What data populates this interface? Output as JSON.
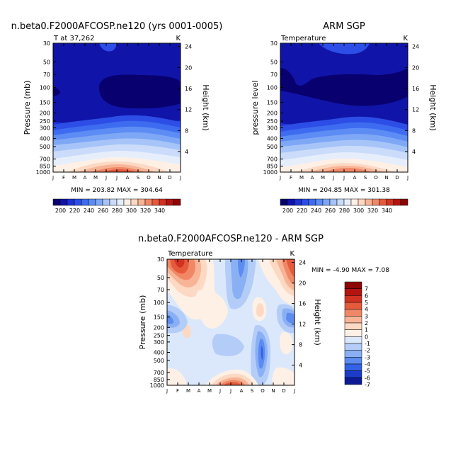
{
  "chart_data": [
    {
      "type": "heatmap",
      "title": "n.beta0.F2000AFCOSP.ne120 (yrs 0001-0005)",
      "subtitle_left": "T at 37,262",
      "subtitle_right": "K",
      "ylabel": "Pressure (mb)",
      "y2label": "Height (km)",
      "x_ticks": [
        "J",
        "F",
        "M",
        "A",
        "M",
        "J",
        "J",
        "A",
        "S",
        "O",
        "N",
        "D",
        "J"
      ],
      "y_ticks": [
        "30",
        "50",
        "70",
        "100",
        "150",
        "200",
        "250",
        "300",
        "400",
        "500",
        "700",
        "850",
        "1000"
      ],
      "y2_ticks": [
        "24",
        "20",
        "16",
        "12",
        "8",
        "4"
      ],
      "stats": "MIN = 203.82  MAX = 304.64",
      "min": 203.82,
      "max": 304.64
    },
    {
      "type": "heatmap",
      "title": "ARM SGP",
      "subtitle_left": "Temperature",
      "subtitle_right": "K",
      "ylabel": "pressure level",
      "y2label": "Height (km)",
      "x_ticks": [
        "J",
        "F",
        "M",
        "A",
        "M",
        "J",
        "J",
        "A",
        "S",
        "O",
        "N",
        "D",
        "J"
      ],
      "y_ticks": [
        "30",
        "50",
        "70",
        "100",
        "150",
        "200",
        "250",
        "300",
        "400",
        "500",
        "700",
        "850",
        "1000"
      ],
      "y2_ticks": [
        "24",
        "20",
        "16",
        "12",
        "8",
        "4"
      ],
      "stats": "MIN = 204.85  MAX = 301.38",
      "min": 204.85,
      "max": 301.38
    },
    {
      "type": "heatmap",
      "title": "n.beta0.F2000AFCOSP.ne120 - ARM SGP",
      "subtitle_left": "Temperature",
      "subtitle_right": "K",
      "ylabel": "Pressure (mb)",
      "y2label": "Height (km)",
      "x_ticks": [
        "J",
        "F",
        "M",
        "A",
        "M",
        "J",
        "J",
        "A",
        "S",
        "O",
        "N",
        "D",
        "J"
      ],
      "y_ticks": [
        "30",
        "50",
        "70",
        "100",
        "150",
        "200",
        "250",
        "300",
        "400",
        "500",
        "700",
        "850",
        "1000"
      ],
      "y2_ticks": [
        "24",
        "20",
        "16",
        "12",
        "8",
        "4"
      ],
      "stats": "MIN =  -4.90  MAX =    7.08",
      "min": -4.9,
      "max": 7.08
    }
  ],
  "colorbar_abs": {
    "labels": [
      "200",
      "220",
      "240",
      "260",
      "280",
      "300",
      "320",
      "340"
    ],
    "colors": [
      "#08006e",
      "#1014a8",
      "#1e32d2",
      "#2d4ee6",
      "#3e6cf0",
      "#5c8cf4",
      "#7ea8f6",
      "#a6c4f8",
      "#cadcfa",
      "#e6eefc",
      "#fff0e6",
      "#fdd8c2",
      "#f8b496",
      "#f08866",
      "#e65a3c",
      "#d23222",
      "#b41410",
      "#8c0606"
    ]
  },
  "colorbar_diff": {
    "labels": [
      "7",
      "6",
      "5",
      "4",
      "3",
      "2",
      "1",
      "0",
      "-1",
      "-2",
      "-3",
      "-4",
      "-5",
      "-6",
      "-7"
    ],
    "colors": [
      "#8c0606",
      "#b41410",
      "#d23222",
      "#e65a3c",
      "#f08866",
      "#f8b496",
      "#fdd8c2",
      "#fff0e6",
      "#dbe8fb",
      "#b4cdf8",
      "#8ab0f4",
      "#5c8cf0",
      "#3462e6",
      "#1a3cc8",
      "#0c1a96"
    ]
  }
}
